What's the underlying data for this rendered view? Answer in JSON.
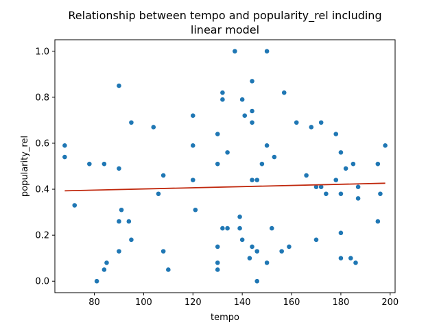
{
  "chart_data": {
    "type": "scatter",
    "title_lines": [
      "Relationship between tempo and popularity_rel including",
      "linear model"
    ],
    "xlabel": "tempo",
    "ylabel": "popularity_rel",
    "xlim": [
      64,
      202
    ],
    "ylim": [
      -0.05,
      1.05
    ],
    "xticks": [
      80,
      100,
      120,
      140,
      160,
      180,
      200
    ],
    "yticks": [
      0.0,
      0.2,
      0.4,
      0.6,
      0.8,
      1.0
    ],
    "xtick_labels": [
      "80",
      "100",
      "120",
      "140",
      "160",
      "180",
      "200"
    ],
    "ytick_labels": [
      "0.0",
      "0.2",
      "0.4",
      "0.6",
      "0.8",
      "1.0"
    ],
    "grid": false,
    "legend": "none",
    "colors": {
      "points": "#1f77b4",
      "line": "#c0280d"
    },
    "series": [
      {
        "type": "scatter",
        "points": [
          [
            68,
            0.59
          ],
          [
            68,
            0.54
          ],
          [
            72,
            0.33
          ],
          [
            78,
            0.51
          ],
          [
            81,
            0.0
          ],
          [
            84,
            0.05
          ],
          [
            84,
            0.51
          ],
          [
            85,
            0.08
          ],
          [
            90,
            0.85
          ],
          [
            90,
            0.49
          ],
          [
            90,
            0.26
          ],
          [
            90,
            0.13
          ],
          [
            91,
            0.31
          ],
          [
            94,
            0.26
          ],
          [
            95,
            0.69
          ],
          [
            95,
            0.18
          ],
          [
            104,
            0.67
          ],
          [
            106,
            0.38
          ],
          [
            108,
            0.46
          ],
          [
            108,
            0.13
          ],
          [
            110,
            0.05
          ],
          [
            120,
            0.72
          ],
          [
            120,
            0.59
          ],
          [
            120,
            0.44
          ],
          [
            121,
            0.31
          ],
          [
            130,
            0.64
          ],
          [
            130,
            0.51
          ],
          [
            130,
            0.15
          ],
          [
            130,
            0.08
          ],
          [
            130,
            0.05
          ],
          [
            132,
            0.82
          ],
          [
            132,
            0.79
          ],
          [
            132,
            0.23
          ],
          [
            134,
            0.56
          ],
          [
            134,
            0.23
          ],
          [
            137,
            1.0
          ],
          [
            139,
            0.28
          ],
          [
            139,
            0.23
          ],
          [
            140,
            0.79
          ],
          [
            140,
            0.18
          ],
          [
            141,
            0.72
          ],
          [
            143,
            0.1
          ],
          [
            144,
            0.87
          ],
          [
            144,
            0.74
          ],
          [
            144,
            0.69
          ],
          [
            144,
            0.44
          ],
          [
            144,
            0.15
          ],
          [
            146,
            0.44
          ],
          [
            146,
            0.13
          ],
          [
            146,
            0.0
          ],
          [
            148,
            0.51
          ],
          [
            150,
            1.0
          ],
          [
            150,
            0.59
          ],
          [
            150,
            0.08
          ],
          [
            152,
            0.23
          ],
          [
            153,
            0.54
          ],
          [
            156,
            0.13
          ],
          [
            157,
            0.82
          ],
          [
            159,
            0.15
          ],
          [
            162,
            0.69
          ],
          [
            166,
            0.46
          ],
          [
            168,
            0.67
          ],
          [
            170,
            0.41
          ],
          [
            170,
            0.18
          ],
          [
            172,
            0.69
          ],
          [
            172,
            0.41
          ],
          [
            174,
            0.38
          ],
          [
            178,
            0.64
          ],
          [
            178,
            0.44
          ],
          [
            180,
            0.56
          ],
          [
            180,
            0.38
          ],
          [
            180,
            0.21
          ],
          [
            180,
            0.1
          ],
          [
            182,
            0.49
          ],
          [
            184,
            0.1
          ],
          [
            185,
            0.51
          ],
          [
            186,
            0.08
          ],
          [
            187,
            0.41
          ],
          [
            187,
            0.36
          ],
          [
            195,
            0.51
          ],
          [
            195,
            0.26
          ],
          [
            196,
            0.38
          ],
          [
            198,
            0.59
          ]
        ]
      },
      {
        "type": "line",
        "points": [
          [
            68,
            0.393
          ],
          [
            198,
            0.426
          ]
        ]
      }
    ]
  }
}
